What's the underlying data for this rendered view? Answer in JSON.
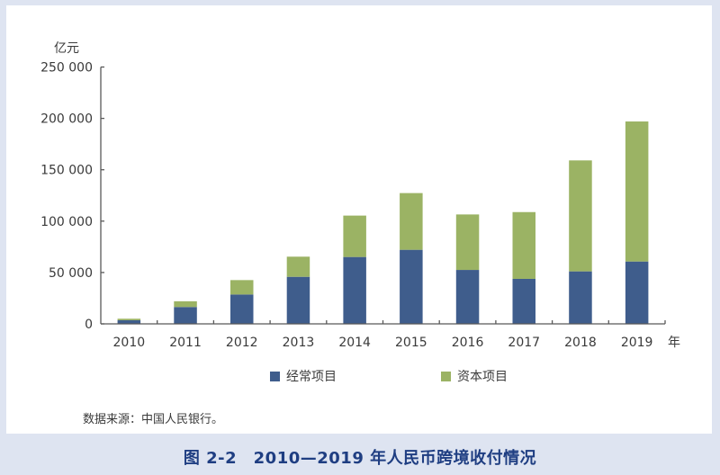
{
  "caption": "图 2-2　2010—2019 年人民币跨境收付情况",
  "source": "数据来源：中国人民银行。",
  "colors": {
    "background": "#dee4f1",
    "current_account": "#3f5d8c",
    "capital_account": "#9bb364",
    "axis": "#595959",
    "caption": "#1f3e82"
  },
  "chart_data": {
    "type": "bar",
    "stacked": true,
    "title": "2010—2019 年人民币跨境收付情况",
    "xlabel": "年",
    "ylabel": "亿元",
    "ylim": [
      0,
      250000
    ],
    "yticks": [
      0,
      50000,
      100000,
      150000,
      200000,
      250000
    ],
    "ytick_labels": [
      "0",
      "50 000",
      "100 000",
      "150 000",
      "200 000",
      "250 000"
    ],
    "grid": false,
    "legend_position": "bottom",
    "categories": [
      "2010",
      "2011",
      "2012",
      "2013",
      "2014",
      "2015",
      "2016",
      "2017",
      "2018",
      "2019"
    ],
    "series": [
      {
        "name": "经常项目",
        "color": "#3f5d8c",
        "values": [
          3500,
          16400,
          28600,
          45800,
          65100,
          72100,
          52500,
          43800,
          51100,
          60700
        ]
      },
      {
        "name": "资本项目",
        "color": "#9bb364",
        "values": [
          1500,
          5600,
          14000,
          19600,
          40300,
          55200,
          54000,
          65000,
          108000,
          136300
        ]
      }
    ]
  }
}
